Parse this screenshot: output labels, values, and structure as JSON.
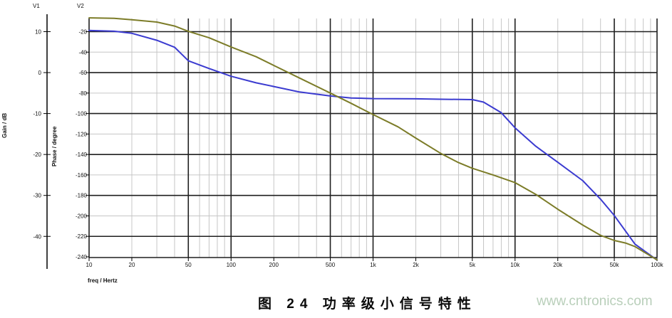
{
  "caption": "图 24 功率级小信号特性",
  "watermark": "www.cntronics.com",
  "chart_data": {
    "type": "line",
    "title": "",
    "x_axis": {
      "label": "freq / Hertz",
      "scale": "log",
      "min": 10,
      "max": 100000,
      "tick_freqs": [
        10,
        20,
        50,
        100,
        200,
        500,
        1000,
        2000,
        5000,
        10000,
        20000,
        50000,
        100000
      ],
      "tick_labels": [
        "10",
        "20",
        "50",
        "100",
        "200",
        "500",
        "1k",
        "2k",
        "5k",
        "10k",
        "20k",
        "50k",
        "100k"
      ]
    },
    "y_left": {
      "name": "V1",
      "label": "Gain / dB",
      "ticks": [
        10,
        0,
        -10,
        -20,
        -30,
        -40
      ]
    },
    "y_right": {
      "name": "V2",
      "label": "Phase / degree",
      "ticks": [
        -20,
        -40,
        -60,
        -80,
        -100,
        -120,
        -140,
        -160,
        -180,
        -200,
        -220,
        -240
      ]
    },
    "grid": {
      "minor_color": "#c6c6c6",
      "major_color": "#1f1f1f",
      "on": true
    },
    "legend": "none",
    "series": [
      {
        "name": "gain",
        "axis": "V1",
        "unit": "dB",
        "color": "#3b3bd0",
        "points": [
          [
            10,
            10.3
          ],
          [
            15,
            10.1
          ],
          [
            20,
            9.6
          ],
          [
            30,
            7.9
          ],
          [
            40,
            6.2
          ],
          [
            50,
            2.9
          ],
          [
            70,
            1.0
          ],
          [
            100,
            -0.9
          ],
          [
            150,
            -2.5
          ],
          [
            200,
            -3.4
          ],
          [
            300,
            -4.7
          ],
          [
            500,
            -5.7
          ],
          [
            700,
            -6.2
          ],
          [
            1000,
            -6.35
          ],
          [
            2000,
            -6.4
          ],
          [
            3000,
            -6.5
          ],
          [
            5000,
            -6.6
          ],
          [
            6000,
            -7.2
          ],
          [
            8000,
            -9.8
          ],
          [
            10000,
            -13.5
          ],
          [
            14000,
            -18.0
          ],
          [
            20000,
            -21.9
          ],
          [
            30000,
            -26.4
          ],
          [
            40000,
            -30.9
          ],
          [
            50000,
            -34.9
          ],
          [
            70000,
            -41.9
          ],
          [
            100000,
            -45.8
          ]
        ]
      },
      {
        "name": "phase",
        "axis": "V2",
        "unit": "degree",
        "color": "#7c7c28",
        "points": [
          [
            10,
            -6.5
          ],
          [
            15,
            -7.0
          ],
          [
            20,
            -8.3
          ],
          [
            30,
            -10.6
          ],
          [
            40,
            -14.5
          ],
          [
            50,
            -19.7
          ],
          [
            70,
            -26
          ],
          [
            100,
            -35
          ],
          [
            150,
            -44.5
          ],
          [
            200,
            -53
          ],
          [
            300,
            -65
          ],
          [
            500,
            -80
          ],
          [
            700,
            -90
          ],
          [
            1000,
            -101
          ],
          [
            1500,
            -113
          ],
          [
            2000,
            -124
          ],
          [
            3000,
            -139
          ],
          [
            4000,
            -148
          ],
          [
            5000,
            -153.5
          ],
          [
            7000,
            -160
          ],
          [
            10000,
            -167.5
          ],
          [
            14000,
            -179
          ],
          [
            20000,
            -193.5
          ],
          [
            30000,
            -209
          ],
          [
            40000,
            -219
          ],
          [
            50000,
            -224
          ],
          [
            60000,
            -226.5
          ],
          [
            70000,
            -230
          ],
          [
            100000,
            -243
          ]
        ]
      }
    ]
  }
}
